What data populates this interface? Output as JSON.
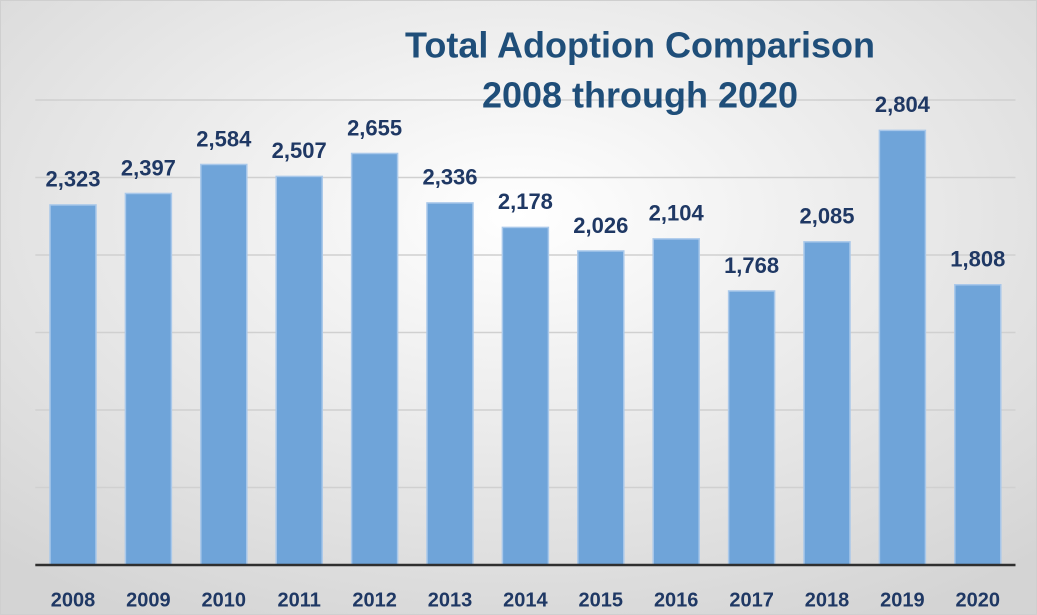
{
  "chart_data": {
    "type": "bar",
    "title": "Total Adoption Comparison",
    "subtitle": "2008 through 2020",
    "categories": [
      "2008",
      "2009",
      "2010",
      "2011",
      "2012",
      "2013",
      "2014",
      "2015",
      "2016",
      "2017",
      "2018",
      "2019",
      "2020"
    ],
    "values": [
      2323,
      2397,
      2584,
      2507,
      2655,
      2336,
      2178,
      2026,
      2104,
      1768,
      2085,
      2804,
      1808
    ],
    "value_labels": [
      "2,323",
      "2,397",
      "2,584",
      "2,507",
      "2,655",
      "2,336",
      "2,178",
      "2,026",
      "2,104",
      "1,768",
      "2,085",
      "2,804",
      "1,808"
    ],
    "color": "#6fa4d9",
    "ylim": [
      0,
      3000
    ],
    "yticks": [
      0,
      500,
      1000,
      1500,
      2000,
      2500,
      3000
    ],
    "grid": true
  }
}
